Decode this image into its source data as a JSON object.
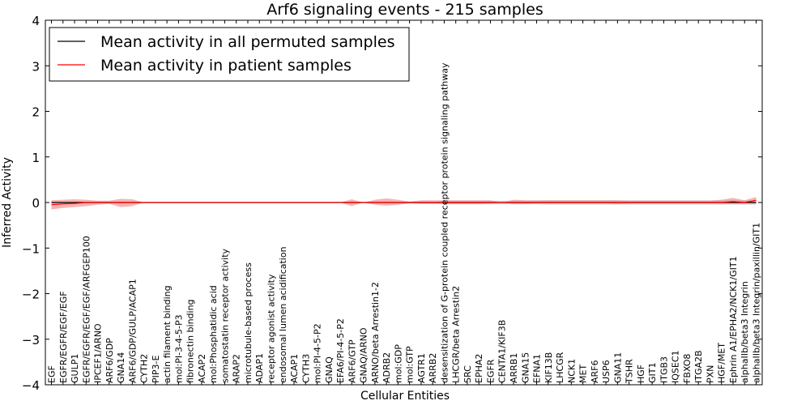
{
  "chart_data": {
    "type": "line",
    "title": "Arf6 signaling events - 215 samples",
    "xlabel": "Cellular Entities",
    "ylabel": "Inferred Activity",
    "ylim": [
      -4,
      4
    ],
    "yticks": [
      -4,
      -3,
      -2,
      -1,
      0,
      1,
      2,
      3,
      4
    ],
    "ytick_labels": [
      "−4",
      "−3",
      "−2",
      "−1",
      "0",
      "1",
      "2",
      "3",
      "4"
    ],
    "grid": false,
    "legend_position": "top-left",
    "categories": [
      "EGF",
      "EGFR/EGFR/EGF/EGF",
      "GULP1",
      "EGFR/EGFR/EGF/EGF/ARFGEP100",
      "IPCEF1/ARNO",
      "ARF6/GDP",
      "GNA14",
      "ARF6/GDP/GULP/ACAP1",
      "CYTH2",
      "PIP3-E",
      "actin filament binding",
      "mol:PI-3-4-5-P3",
      "fibronectin binding",
      "ACAP2",
      "mol:Phosphatidic acid",
      "somatostatin receptor activity",
      "ARAP2",
      "microtubule-based process",
      "ADAP1",
      "receptor agonist activity",
      "endosomal lumen acidification",
      "ACAP1",
      "CYTH3",
      "mol:PI-4-5-P2",
      "GNAQ",
      "EFA6/PI-4-5-P2",
      "ARF6/GTP",
      "GNAQ/ARNO",
      "ARNO/beta Arrestin1-2",
      "ADRB2",
      "mol:GDP",
      "mol:GTP",
      "AGTR1",
      "ARRB2",
      "desensitization of G-protein coupled receptor protein signaling pathway",
      "LHCGR/beta Arrestin2",
      "SRC",
      "EPHA2",
      "EGFR",
      "CENTA1/KIF3B",
      "ARRB1",
      "GNA15",
      "EFNA1",
      "KIF13B",
      "LHCGR",
      "NCK1",
      "MET",
      "ARF6",
      "USP6",
      "GNA11",
      "TSHR",
      "HGF",
      "GIT1",
      "ITGB3",
      "IQSEC1",
      "FBXO8",
      "ITGA2B",
      "PXN",
      "HGF/MET",
      "Ephrin A1/EPHA2/NCK1/GIT1",
      "alphaIIb/beta3 Integrin",
      "alphaIIb/beta3 Integrin/paxillin/GIT1"
    ],
    "series": [
      {
        "name": "Mean activity in all permuted samples",
        "color": "#000000",
        "values": [
          0.0,
          0.0,
          0.0,
          0.0,
          0.0,
          0.0,
          0.0,
          0.0,
          0.0,
          0.0,
          0.0,
          0.0,
          0.0,
          0.0,
          0.0,
          0.0,
          0.0,
          0.0,
          0.0,
          0.0,
          0.0,
          0.0,
          0.0,
          0.0,
          0.0,
          0.0,
          0.0,
          0.0,
          0.0,
          0.0,
          0.0,
          0.0,
          0.0,
          0.0,
          0.0,
          0.0,
          0.0,
          0.0,
          0.0,
          0.0,
          0.0,
          0.0,
          0.0,
          0.0,
          0.0,
          0.0,
          0.0,
          0.0,
          0.0,
          0.0,
          0.0,
          0.0,
          0.0,
          0.0,
          0.0,
          0.0,
          0.0,
          0.0,
          0.0,
          0.0,
          0.0,
          0.0
        ],
        "band_lower": [
          0.0,
          0.0,
          0.0,
          0.0,
          0.0,
          0.0,
          0.0,
          0.0,
          0.0,
          0.0,
          0.0,
          0.0,
          0.0,
          0.0,
          0.0,
          0.0,
          0.0,
          0.0,
          0.0,
          0.0,
          0.0,
          0.0,
          0.0,
          0.0,
          0.0,
          0.0,
          0.0,
          0.0,
          0.0,
          0.0,
          0.0,
          0.0,
          0.0,
          0.0,
          -0.04,
          -0.04,
          -0.04,
          -0.04,
          -0.04,
          -0.04,
          -0.04,
          -0.04,
          -0.04,
          -0.05,
          -0.05,
          -0.05,
          -0.05,
          -0.05,
          -0.05,
          -0.05,
          -0.05,
          -0.05,
          -0.05,
          -0.05,
          -0.05,
          -0.05,
          -0.05,
          -0.05,
          -0.05,
          -0.05,
          -0.05,
          -0.05
        ],
        "band_upper": [
          0.0,
          0.0,
          0.0,
          0.0,
          0.0,
          0.0,
          0.0,
          0.0,
          0.0,
          0.0,
          0.0,
          0.0,
          0.0,
          0.0,
          0.0,
          0.0,
          0.0,
          0.0,
          0.0,
          0.0,
          0.0,
          0.0,
          0.0,
          0.0,
          0.0,
          0.0,
          0.0,
          0.0,
          0.0,
          0.0,
          0.0,
          0.0,
          0.0,
          0.0,
          0.04,
          0.04,
          0.04,
          0.04,
          0.04,
          0.04,
          0.04,
          0.04,
          0.04,
          0.05,
          0.05,
          0.05,
          0.05,
          0.05,
          0.05,
          0.05,
          0.05,
          0.05,
          0.05,
          0.05,
          0.05,
          0.05,
          0.05,
          0.05,
          0.05,
          0.05,
          0.05,
          0.05
        ]
      },
      {
        "name": "Mean activity in patient samples",
        "color": "#ff0000",
        "values": [
          -0.05,
          -0.03,
          -0.02,
          0.0,
          0.0,
          0.0,
          0.0,
          0.0,
          0.0,
          0.0,
          0.0,
          0.0,
          0.0,
          0.0,
          0.0,
          0.0,
          0.0,
          0.0,
          0.0,
          0.0,
          0.0,
          0.0,
          0.0,
          0.0,
          0.0,
          0.0,
          0.0,
          0.0,
          0.0,
          0.0,
          0.0,
          0.0,
          0.0,
          0.0,
          0.0,
          0.0,
          0.0,
          0.0,
          0.0,
          0.0,
          0.0,
          0.0,
          0.0,
          0.0,
          0.0,
          0.0,
          0.0,
          0.0,
          0.0,
          0.0,
          0.0,
          0.0,
          0.0,
          0.0,
          0.0,
          0.0,
          0.0,
          0.0,
          0.0,
          0.02,
          0.0,
          0.05
        ],
        "band_lower": [
          -0.15,
          -0.12,
          -0.1,
          -0.08,
          -0.05,
          -0.03,
          -0.1,
          -0.08,
          0.0,
          0.0,
          0.0,
          0.0,
          0.0,
          0.0,
          0.0,
          0.0,
          0.0,
          0.0,
          0.0,
          0.0,
          0.0,
          0.0,
          0.0,
          0.0,
          0.0,
          0.0,
          -0.08,
          0.0,
          -0.05,
          -0.07,
          -0.05,
          -0.02,
          -0.03,
          -0.03,
          -0.03,
          -0.03,
          -0.03,
          -0.03,
          -0.02,
          0.0,
          -0.03,
          -0.03,
          -0.02,
          -0.02,
          -0.02,
          -0.02,
          -0.02,
          -0.02,
          -0.02,
          -0.03,
          -0.02,
          -0.02,
          -0.02,
          -0.02,
          -0.02,
          -0.02,
          -0.02,
          -0.02,
          -0.02,
          -0.02,
          -0.02,
          -0.02
        ],
        "band_upper": [
          0.05,
          0.06,
          0.07,
          0.06,
          0.04,
          0.04,
          0.08,
          0.07,
          0.0,
          0.0,
          0.0,
          0.0,
          0.0,
          0.0,
          0.0,
          0.0,
          0.0,
          0.0,
          0.0,
          0.0,
          0.0,
          0.0,
          0.0,
          0.0,
          0.0,
          0.0,
          0.07,
          0.0,
          0.06,
          0.09,
          0.06,
          0.02,
          0.05,
          0.05,
          0.05,
          0.05,
          0.05,
          0.05,
          0.05,
          0.0,
          0.06,
          0.05,
          0.05,
          0.05,
          0.05,
          0.05,
          0.05,
          0.05,
          0.05,
          0.05,
          0.04,
          0.04,
          0.04,
          0.04,
          0.04,
          0.04,
          0.04,
          0.04,
          0.06,
          0.1,
          0.05,
          0.12
        ]
      }
    ]
  },
  "colors": {
    "permuted_band": "#c8c8c8",
    "patient_band": "#f08080"
  }
}
